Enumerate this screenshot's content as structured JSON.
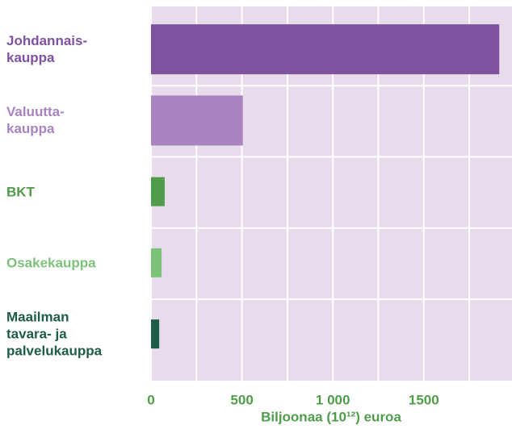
{
  "chart_data": {
    "type": "bar",
    "orientation": "horizontal",
    "categories": [
      "Johdannais-\nkauppa",
      "Valuutta-\nkauppa",
      "BKT",
      "Osakekauppa",
      "Maailman\ntavara- ja\npalvelukauppa"
    ],
    "values": [
      1915,
      505,
      75,
      58,
      45
    ],
    "colors": [
      "#7f52a0",
      "#a883c0",
      "#4f9c4b",
      "#7dc27a",
      "#1d5c47"
    ],
    "xlabel": "Biljoonaa (10¹²) euroa",
    "xlim": [
      0,
      1985
    ],
    "xticks": [
      0,
      500,
      {
        "value": 1000,
        "label": "1 000"
      },
      1500
    ],
    "xminor": [
      250,
      750,
      1250,
      1750
    ],
    "grid": true
  }
}
